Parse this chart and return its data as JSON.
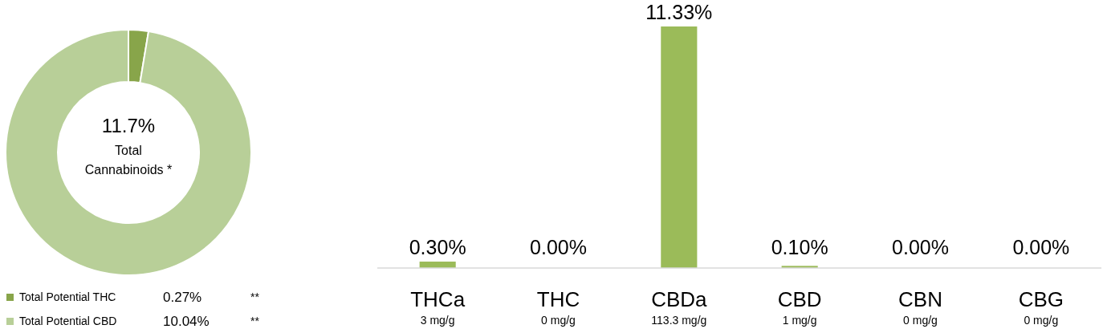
{
  "chart_data": [
    {
      "type": "donut",
      "categories": [
        "Total Potential THC",
        "Total Potential CBD"
      ],
      "values": [
        0.27,
        10.04
      ],
      "colors": [
        "#88a54a",
        "#b8cf98"
      ],
      "value_labels": [
        "0.27%",
        "10.04%"
      ],
      "legend": "bottom",
      "annotations": [
        "11.7%",
        "Total Cannabinoids *",
        "**",
        "**"
      ]
    },
    {
      "type": "bar",
      "categories": [
        "THCa\n3 mg/g",
        "THC\n0 mg/g",
        "CBDa\n113.3 mg/g",
        "CBD\n1 mg/g",
        "CBN\n0 mg/g",
        "CBG\n0 mg/g"
      ],
      "values": [
        0.3,
        0.0,
        11.33,
        0.1,
        0.0,
        0.0
      ],
      "color": "#9bbb59",
      "value_labels": [
        "0.30%",
        "0.00%",
        "11.33%",
        "0.10%",
        "0.00%",
        "0.00%"
      ]
    }
  ]
}
